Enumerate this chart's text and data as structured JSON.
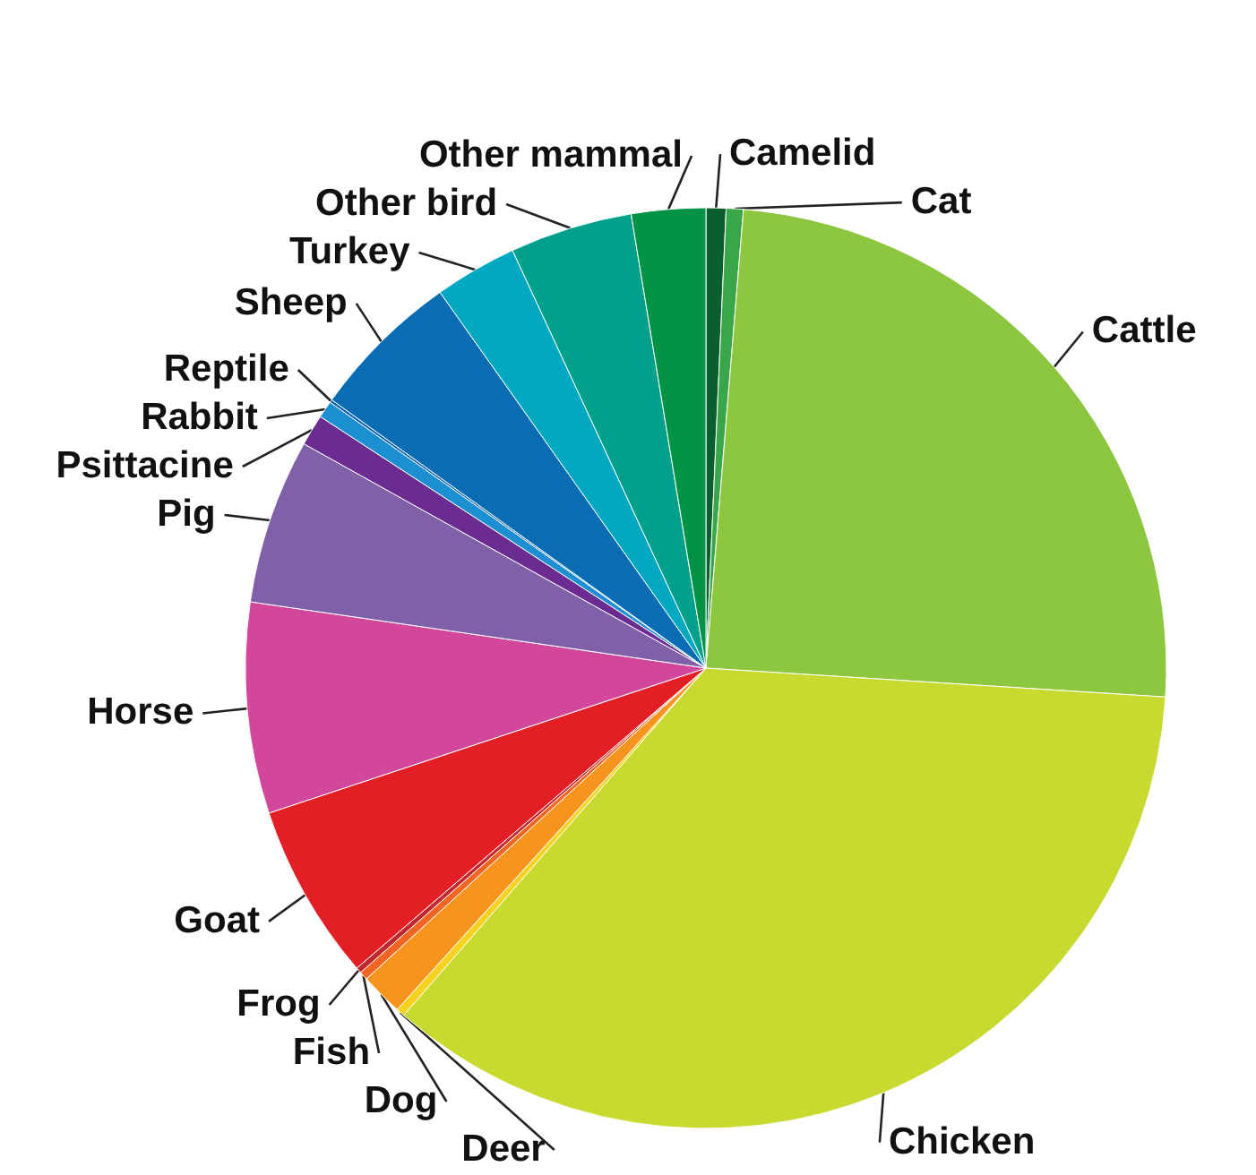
{
  "chart_data": {
    "type": "pie",
    "categories": [
      "Camelid",
      "Cat",
      "Cattle",
      "Chicken",
      "Deer",
      "Dog",
      "Fish",
      "Frog",
      "Goat",
      "Horse",
      "Pig",
      "Psittacine",
      "Rabbit",
      "Reptile",
      "Sheep",
      "Turkey",
      "Other bird",
      "Other mammal"
    ],
    "values": [
      0.7,
      0.6,
      24.7,
      35.4,
      0.3,
      1.5,
      0.3,
      0.2,
      6.2,
      7.4,
      5.8,
      1.1,
      0.6,
      0.1,
      5.3,
      2.9,
      4.3,
      2.6
    ],
    "colors": [
      "#0b5e2e",
      "#3aa64a",
      "#8dc63f",
      "#c8d92f",
      "#f5d21f",
      "#f7941d",
      "#f26522",
      "#c1272d",
      "#e31e24",
      "#d2479a",
      "#8060a9",
      "#6a2c91",
      "#1b8fd2",
      "#0c5fa8",
      "#0a6db3",
      "#00a9c1",
      "#00a08a",
      "#009345"
    ]
  }
}
